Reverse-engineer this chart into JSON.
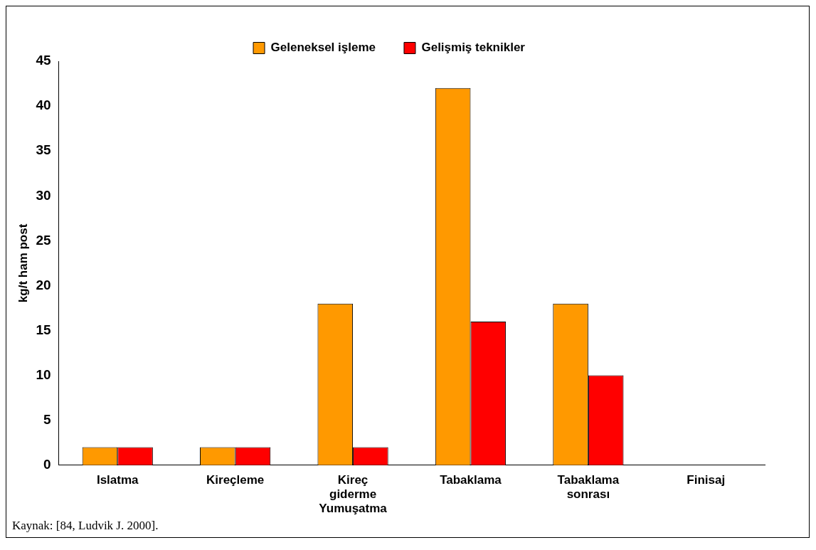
{
  "chart_data": {
    "type": "bar",
    "categories": [
      "Islatma",
      "Kireçleme",
      "Kireç giderme Yumuşatma",
      "Tabaklama",
      "Tabaklama sonrası",
      "Finisaj"
    ],
    "series": [
      {
        "name": "Geleneksel işleme",
        "color": "#ff9900",
        "values": [
          2,
          2,
          18,
          42,
          18,
          0
        ]
      },
      {
        "name": "Gelişmiş teknikler",
        "color": "#ff0000",
        "values": [
          2,
          2,
          2,
          16,
          10,
          0
        ]
      }
    ],
    "ylabel": "kg/t ham post",
    "ylim": [
      0,
      45
    ],
    "yticks": [
      0,
      5,
      10,
      15,
      20,
      25,
      30,
      35,
      40,
      45
    ],
    "grid": false,
    "legend": "top",
    "annotations": [
      "Kaynak: [84, Ludvik J. 2000]."
    ]
  }
}
